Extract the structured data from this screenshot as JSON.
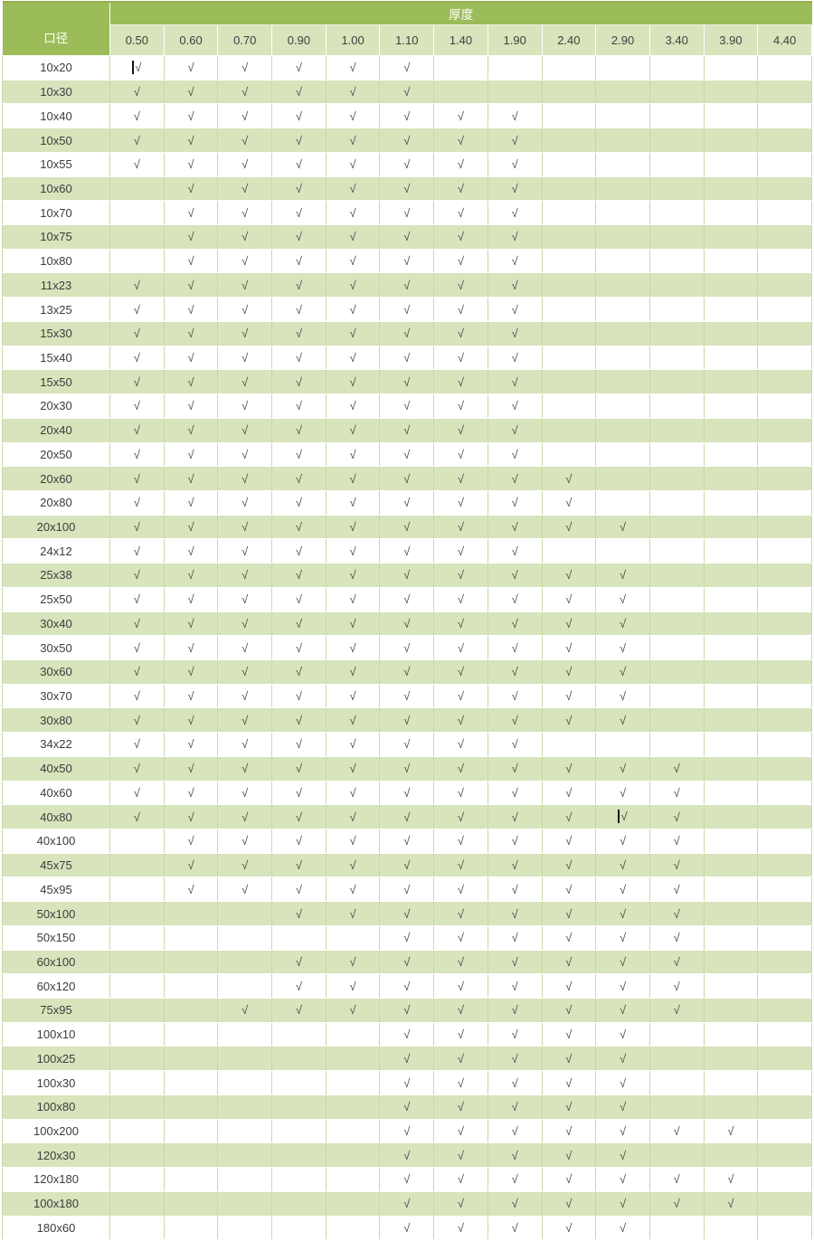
{
  "table": {
    "corner_header": "口径",
    "banner_header": "厚度",
    "check_glyph": "√",
    "thickness_columns": [
      "0.50",
      "0.60",
      "0.70",
      "0.90",
      "1.00",
      "1.10",
      "1.40",
      "1.90",
      "2.40",
      "2.90",
      "3.40",
      "3.90",
      "4.40"
    ],
    "rows": [
      {
        "size": "10x20",
        "checks": [
          "0.50",
          "0.60",
          "0.70",
          "0.90",
          "1.00",
          "1.10"
        ],
        "caret_at": "0.50"
      },
      {
        "size": "10x30",
        "checks": [
          "0.50",
          "0.60",
          "0.70",
          "0.90",
          "1.00",
          "1.10"
        ]
      },
      {
        "size": "10x40",
        "checks": [
          "0.50",
          "0.60",
          "0.70",
          "0.90",
          "1.00",
          "1.10",
          "1.40",
          "1.90"
        ]
      },
      {
        "size": "10x50",
        "checks": [
          "0.50",
          "0.60",
          "0.70",
          "0.90",
          "1.00",
          "1.10",
          "1.40",
          "1.90"
        ]
      },
      {
        "size": "10x55",
        "checks": [
          "0.50",
          "0.60",
          "0.70",
          "0.90",
          "1.00",
          "1.10",
          "1.40",
          "1.90"
        ]
      },
      {
        "size": "10x60",
        "checks": [
          "0.60",
          "0.70",
          "0.90",
          "1.00",
          "1.10",
          "1.40",
          "1.90"
        ]
      },
      {
        "size": "10x70",
        "checks": [
          "0.60",
          "0.70",
          "0.90",
          "1.00",
          "1.10",
          "1.40",
          "1.90"
        ]
      },
      {
        "size": "10x75",
        "checks": [
          "0.60",
          "0.70",
          "0.90",
          "1.00",
          "1.10",
          "1.40",
          "1.90"
        ]
      },
      {
        "size": "10x80",
        "checks": [
          "0.60",
          "0.70",
          "0.90",
          "1.00",
          "1.10",
          "1.40",
          "1.90"
        ]
      },
      {
        "size": "11x23",
        "checks": [
          "0.50",
          "0.60",
          "0.70",
          "0.90",
          "1.00",
          "1.10",
          "1.40",
          "1.90"
        ]
      },
      {
        "size": "13x25",
        "checks": [
          "0.50",
          "0.60",
          "0.70",
          "0.90",
          "1.00",
          "1.10",
          "1.40",
          "1.90"
        ]
      },
      {
        "size": "15x30",
        "checks": [
          "0.50",
          "0.60",
          "0.70",
          "0.90",
          "1.00",
          "1.10",
          "1.40",
          "1.90"
        ]
      },
      {
        "size": "15x40",
        "checks": [
          "0.50",
          "0.60",
          "0.70",
          "0.90",
          "1.00",
          "1.10",
          "1.40",
          "1.90"
        ]
      },
      {
        "size": "15x50",
        "checks": [
          "0.50",
          "0.60",
          "0.70",
          "0.90",
          "1.00",
          "1.10",
          "1.40",
          "1.90"
        ]
      },
      {
        "size": "20x30",
        "checks": [
          "0.50",
          "0.60",
          "0.70",
          "0.90",
          "1.00",
          "1.10",
          "1.40",
          "1.90"
        ]
      },
      {
        "size": "20x40",
        "checks": [
          "0.50",
          "0.60",
          "0.70",
          "0.90",
          "1.00",
          "1.10",
          "1.40",
          "1.90"
        ]
      },
      {
        "size": "20x50",
        "checks": [
          "0.50",
          "0.60",
          "0.70",
          "0.90",
          "1.00",
          "1.10",
          "1.40",
          "1.90"
        ]
      },
      {
        "size": "20x60",
        "checks": [
          "0.50",
          "0.60",
          "0.70",
          "0.90",
          "1.00",
          "1.10",
          "1.40",
          "1.90",
          "2.40"
        ]
      },
      {
        "size": "20x80",
        "checks": [
          "0.50",
          "0.60",
          "0.70",
          "0.90",
          "1.00",
          "1.10",
          "1.40",
          "1.90",
          "2.40"
        ]
      },
      {
        "size": "20x100",
        "checks": [
          "0.50",
          "0.60",
          "0.70",
          "0.90",
          "1.00",
          "1.10",
          "1.40",
          "1.90",
          "2.40",
          "2.90"
        ]
      },
      {
        "size": "24x12",
        "checks": [
          "0.50",
          "0.60",
          "0.70",
          "0.90",
          "1.00",
          "1.10",
          "1.40",
          "1.90"
        ]
      },
      {
        "size": "25x38",
        "checks": [
          "0.50",
          "0.60",
          "0.70",
          "0.90",
          "1.00",
          "1.10",
          "1.40",
          "1.90",
          "2.40",
          "2.90"
        ]
      },
      {
        "size": "25x50",
        "checks": [
          "0.50",
          "0.60",
          "0.70",
          "0.90",
          "1.00",
          "1.10",
          "1.40",
          "1.90",
          "2.40",
          "2.90"
        ]
      },
      {
        "size": "30x40",
        "checks": [
          "0.50",
          "0.60",
          "0.70",
          "0.90",
          "1.00",
          "1.10",
          "1.40",
          "1.90",
          "2.40",
          "2.90"
        ]
      },
      {
        "size": "30x50",
        "checks": [
          "0.50",
          "0.60",
          "0.70",
          "0.90",
          "1.00",
          "1.10",
          "1.40",
          "1.90",
          "2.40",
          "2.90"
        ]
      },
      {
        "size": "30x60",
        "checks": [
          "0.50",
          "0.60",
          "0.70",
          "0.90",
          "1.00",
          "1.10",
          "1.40",
          "1.90",
          "2.40",
          "2.90"
        ]
      },
      {
        "size": "30x70",
        "checks": [
          "0.50",
          "0.60",
          "0.70",
          "0.90",
          "1.00",
          "1.10",
          "1.40",
          "1.90",
          "2.40",
          "2.90"
        ]
      },
      {
        "size": "30x80",
        "checks": [
          "0.50",
          "0.60",
          "0.70",
          "0.90",
          "1.00",
          "1.10",
          "1.40",
          "1.90",
          "2.40",
          "2.90"
        ]
      },
      {
        "size": "34x22",
        "checks": [
          "0.50",
          "0.60",
          "0.70",
          "0.90",
          "1.00",
          "1.10",
          "1.40",
          "1.90"
        ]
      },
      {
        "size": "40x50",
        "checks": [
          "0.50",
          "0.60",
          "0.70",
          "0.90",
          "1.00",
          "1.10",
          "1.40",
          "1.90",
          "2.40",
          "2.90",
          "3.40"
        ]
      },
      {
        "size": "40x60",
        "checks": [
          "0.50",
          "0.60",
          "0.70",
          "0.90",
          "1.00",
          "1.10",
          "1.40",
          "1.90",
          "2.40",
          "2.90",
          "3.40"
        ]
      },
      {
        "size": "40x80",
        "checks": [
          "0.50",
          "0.60",
          "0.70",
          "0.90",
          "1.00",
          "1.10",
          "1.40",
          "1.90",
          "2.40",
          "2.90",
          "3.40"
        ],
        "caret_at": "2.90"
      },
      {
        "size": "40x100",
        "checks": [
          "0.60",
          "0.70",
          "0.90",
          "1.00",
          "1.10",
          "1.40",
          "1.90",
          "2.40",
          "2.90",
          "3.40"
        ]
      },
      {
        "size": "45x75",
        "checks": [
          "0.60",
          "0.70",
          "0.90",
          "1.00",
          "1.10",
          "1.40",
          "1.90",
          "2.40",
          "2.90",
          "3.40"
        ]
      },
      {
        "size": "45x95",
        "checks": [
          "0.60",
          "0.70",
          "0.90",
          "1.00",
          "1.10",
          "1.40",
          "1.90",
          "2.40",
          "2.90",
          "3.40"
        ]
      },
      {
        "size": "50x100",
        "checks": [
          "0.90",
          "1.00",
          "1.10",
          "1.40",
          "1.90",
          "2.40",
          "2.90",
          "3.40"
        ]
      },
      {
        "size": "50x150",
        "checks": [
          "1.10",
          "1.40",
          "1.90",
          "2.40",
          "2.90",
          "3.40"
        ]
      },
      {
        "size": "60x100",
        "checks": [
          "0.90",
          "1.00",
          "1.10",
          "1.40",
          "1.90",
          "2.40",
          "2.90",
          "3.40"
        ]
      },
      {
        "size": "60x120",
        "checks": [
          "0.90",
          "1.00",
          "1.10",
          "1.40",
          "1.90",
          "2.40",
          "2.90",
          "3.40"
        ]
      },
      {
        "size": "75x95",
        "checks": [
          "0.70",
          "0.90",
          "1.00",
          "1.10",
          "1.40",
          "1.90",
          "2.40",
          "2.90",
          "3.40"
        ]
      },
      {
        "size": "100x10",
        "checks": [
          "1.10",
          "1.40",
          "1.90",
          "2.40",
          "2.90"
        ]
      },
      {
        "size": "100x25",
        "checks": [
          "1.10",
          "1.40",
          "1.90",
          "2.40",
          "2.90"
        ]
      },
      {
        "size": "100x30",
        "checks": [
          "1.10",
          "1.40",
          "1.90",
          "2.40",
          "2.90"
        ]
      },
      {
        "size": "100x80",
        "checks": [
          "1.10",
          "1.40",
          "1.90",
          "2.40",
          "2.90"
        ]
      },
      {
        "size": "100x200",
        "checks": [
          "1.10",
          "1.40",
          "1.90",
          "2.40",
          "2.90",
          "3.40",
          "3.90"
        ]
      },
      {
        "size": "120x30",
        "checks": [
          "1.10",
          "1.40",
          "1.90",
          "2.40",
          "2.90"
        ]
      },
      {
        "size": "120x180",
        "checks": [
          "1.10",
          "1.40",
          "1.90",
          "2.40",
          "2.90",
          "3.40",
          "3.90"
        ]
      },
      {
        "size": "100x180",
        "checks": [
          "1.10",
          "1.40",
          "1.90",
          "2.40",
          "2.90",
          "3.40",
          "3.90"
        ]
      },
      {
        "size": "180x60",
        "checks": [
          "1.10",
          "1.40",
          "1.90",
          "2.40",
          "2.90"
        ]
      }
    ]
  },
  "colors": {
    "header_green": "#9cbb59",
    "band_green": "#d7e4bc",
    "grid_line": "#c9d9a3",
    "top_edge": "#92ae51",
    "header_text": "#ffffff",
    "body_text": "#3c3c3c"
  }
}
